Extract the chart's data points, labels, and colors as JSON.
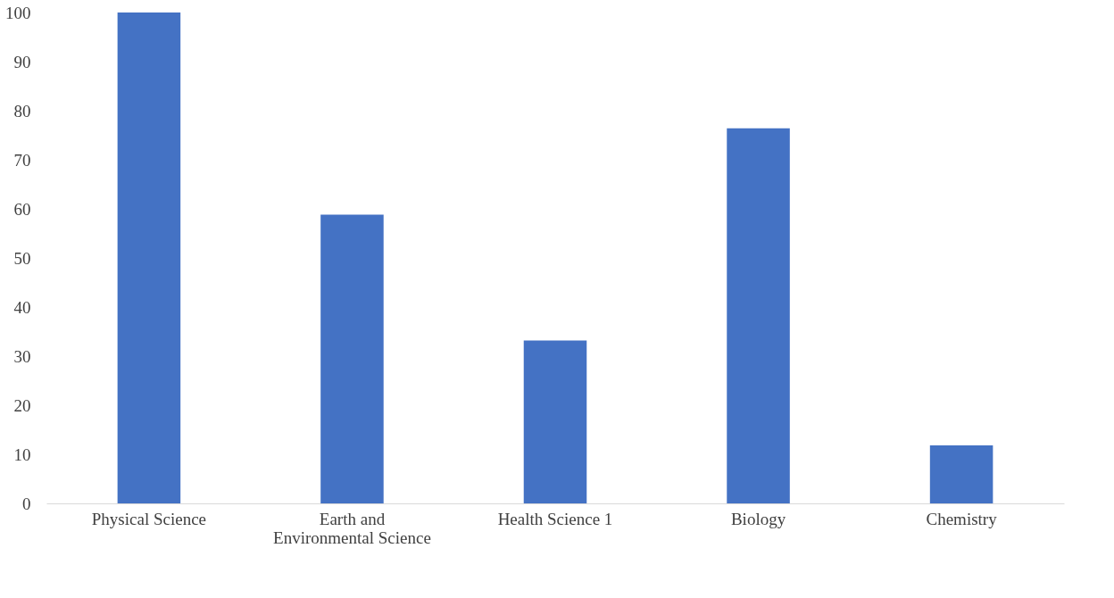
{
  "chart_data": {
    "type": "bar",
    "categories": [
      "Physical Science",
      "Earth and Environmental Science",
      "Health Science 1",
      "Biology",
      "Chemistry"
    ],
    "values": [
      100,
      58.8,
      33.2,
      76.4,
      11.8
    ],
    "color": "#4472c4",
    "ylim": [
      0,
      100
    ],
    "yticks": [
      0,
      10,
      20,
      30,
      40,
      50,
      60,
      70,
      80,
      90,
      100
    ],
    "grid": false
  }
}
